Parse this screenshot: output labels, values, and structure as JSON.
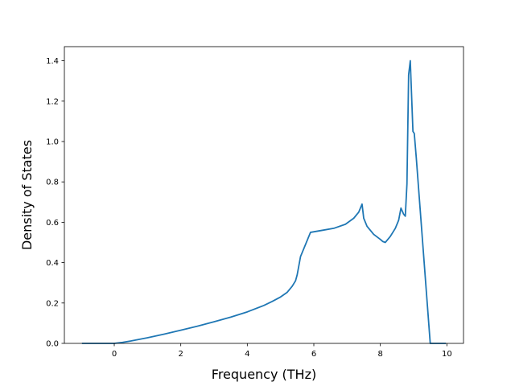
{
  "chart_data": {
    "type": "line",
    "title": "",
    "xlabel": "Frequency (THz)",
    "ylabel": "Density of States",
    "xlim": [
      -1.5,
      10.5
    ],
    "ylim": [
      0.0,
      1.47
    ],
    "xticks": [
      0,
      2,
      4,
      6,
      8,
      10
    ],
    "xtick_labels": [
      "0",
      "2",
      "4",
      "6",
      "8",
      "10"
    ],
    "yticks": [
      0.0,
      0.2,
      0.4,
      0.6,
      0.8,
      1.0,
      1.2,
      1.4
    ],
    "ytick_labels": [
      "0.0",
      "0.2",
      "0.4",
      "0.6",
      "0.8",
      "1.0",
      "1.2",
      "1.4"
    ],
    "grid": false,
    "legend": "none",
    "series": [
      {
        "color": "#1f77b4",
        "x": [
          -0.95,
          -0.5,
          0.0,
          0.25,
          0.5,
          1.0,
          1.5,
          2.0,
          2.5,
          3.0,
          3.5,
          4.0,
          4.5,
          4.75,
          5.0,
          5.2,
          5.35,
          5.45,
          5.5,
          5.55,
          5.6,
          5.9,
          6.25,
          6.6,
          6.95,
          7.2,
          7.35,
          7.45,
          7.5,
          7.6,
          7.8,
          8.0,
          8.07,
          8.15,
          8.3,
          8.45,
          8.55,
          8.62,
          8.7,
          8.75,
          8.8,
          8.85,
          8.9,
          8.98,
          9.02,
          9.08,
          9.5,
          9.95
        ],
        "y": [
          0.0,
          0.0,
          0.0,
          0.005,
          0.012,
          0.028,
          0.046,
          0.065,
          0.085,
          0.107,
          0.13,
          0.156,
          0.188,
          0.208,
          0.23,
          0.253,
          0.283,
          0.31,
          0.34,
          0.385,
          0.43,
          0.55,
          0.56,
          0.57,
          0.59,
          0.62,
          0.65,
          0.69,
          0.62,
          0.58,
          0.54,
          0.515,
          0.505,
          0.5,
          0.53,
          0.57,
          0.61,
          0.67,
          0.64,
          0.63,
          0.79,
          1.33,
          1.4,
          1.05,
          1.04,
          0.92,
          0.0,
          0.0
        ]
      }
    ]
  }
}
